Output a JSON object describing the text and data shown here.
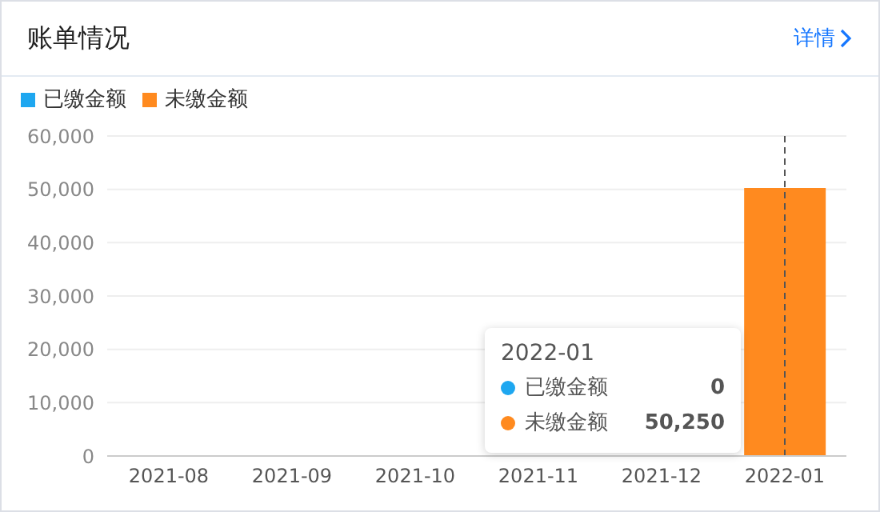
{
  "chart_data": {
    "type": "bar",
    "title": "账单情况",
    "subtitle": "详情",
    "categories": [
      "2021-08",
      "2021-09",
      "2021-10",
      "2021-11",
      "2021-12",
      "2022-01"
    ],
    "series": [
      {
        "name": "已缴金额",
        "color": "#1ea7f0",
        "values": [
          0,
          0,
          0,
          0,
          0,
          0
        ]
      },
      {
        "name": "未缴金额",
        "color": "#ff8a1f",
        "values": [
          0,
          0,
          0,
          0,
          0,
          50250
        ]
      }
    ],
    "stacked": true,
    "ylim": [
      0,
      60000
    ],
    "yticks": [
      {
        "value": 0,
        "label": "0"
      },
      {
        "value": 10000,
        "label": "10,000"
      },
      {
        "value": 20000,
        "label": "20,000"
      },
      {
        "value": 30000,
        "label": "30,000"
      },
      {
        "value": 40000,
        "label": "40,000"
      },
      {
        "value": 50000,
        "label": "50,000"
      },
      {
        "value": 60000,
        "label": "60,000"
      }
    ],
    "grid": "y",
    "legend": "top left",
    "ref_lines": [
      {
        "axis": "x",
        "value": "2022-01",
        "color": "#555555",
        "line_style": "dashed"
      }
    ],
    "annotations": [
      "2022-01",
      "已缴金额",
      "0",
      "未缴金额",
      "50,250"
    ]
  }
}
